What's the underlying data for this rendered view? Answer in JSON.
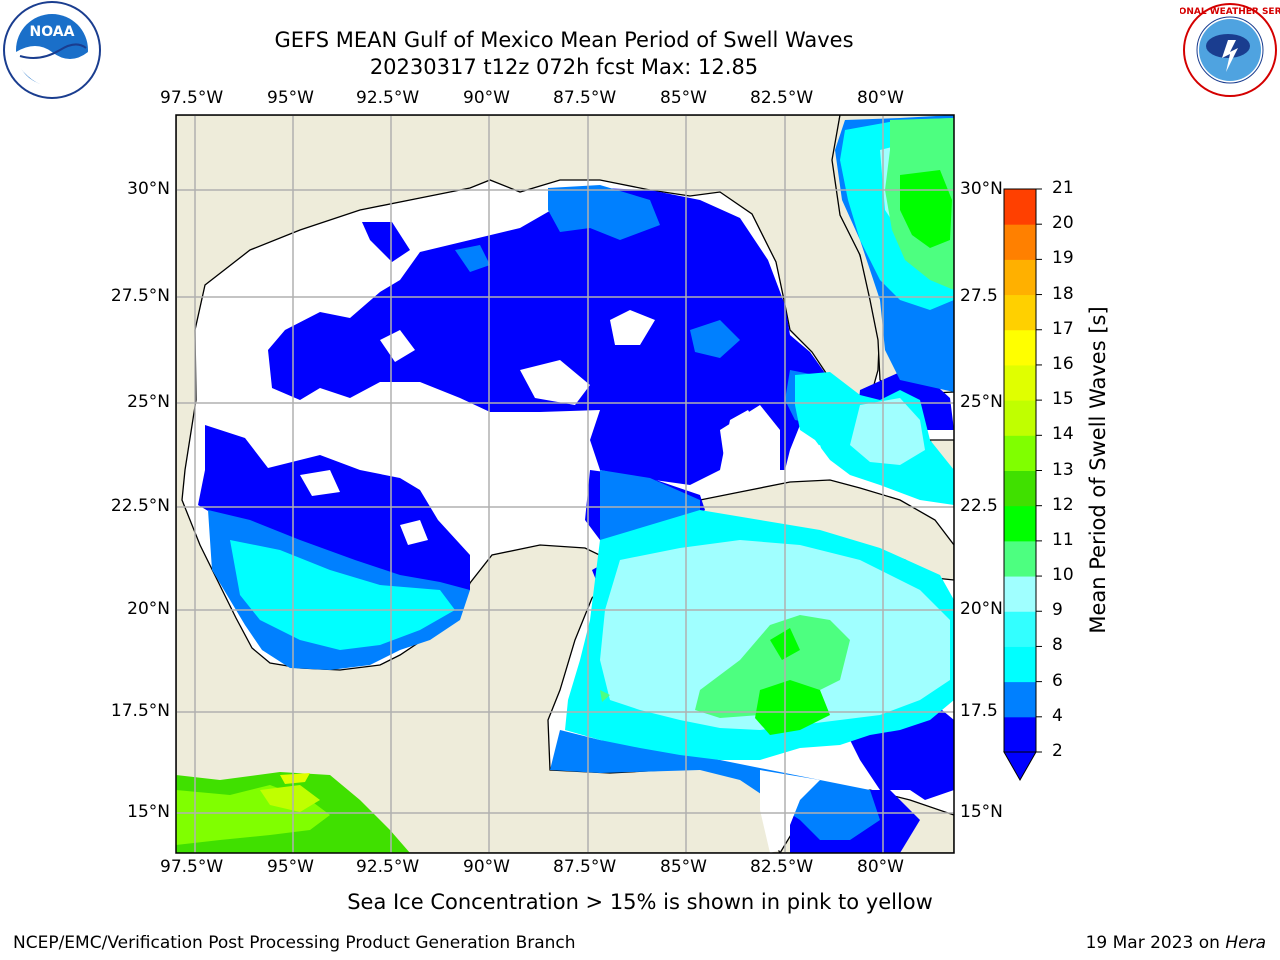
{
  "title": {
    "line1": "GEFS MEAN Gulf of Mexico Mean Period of Swell Waves",
    "line2": "20230317 t12z 072h fcst   Max: 12.85"
  },
  "map": {
    "lon_labels": [
      "97.5°W",
      "95°W",
      "92.5°W",
      "90°W",
      "87.5°W",
      "85°W",
      "82.5°W",
      "80°W"
    ],
    "lat_labels_left": [
      "30°N",
      "27.5°N",
      "25°N",
      "22.5°N",
      "20°N",
      "17.5°N",
      "15°N"
    ],
    "lat_labels_right": [
      "30°N",
      "27.5",
      "25°N",
      "22.5",
      "20°N",
      "17.5",
      "15°N"
    ],
    "colors": {
      "land": "#eeecda",
      "grid": "#b0b0b0",
      "coast": "#000000"
    }
  },
  "colorbar": {
    "label": "Mean Period of Swell Waves [s]",
    "ticks": [
      "2",
      "4",
      "6",
      "8",
      "9",
      "10",
      "11",
      "12",
      "13",
      "14",
      "15",
      "16",
      "17",
      "18",
      "19",
      "20",
      "21"
    ],
    "colors": [
      "#0000ff",
      "#0080ff",
      "#00ffff",
      "#33ffff",
      "#a0ffff",
      "#4dff80",
      "#00ff00",
      "#40e000",
      "#80ff00",
      "#c0ff00",
      "#e0ff00",
      "#ffff00",
      "#ffd000",
      "#ffb000",
      "#ff8000",
      "#ff4000",
      "#ff0000"
    ]
  },
  "note": "Sea Ice Concentration > 15% is shown in pink to yellow",
  "footer": {
    "left": "NCEP/EMC/Verification Post Processing Product Generation Branch",
    "date": "19 Mar 2023 on ",
    "machine": "Hera"
  },
  "logos": {
    "noaa": "NOAA",
    "nws": "NATIONAL WEATHER SERVICE"
  }
}
